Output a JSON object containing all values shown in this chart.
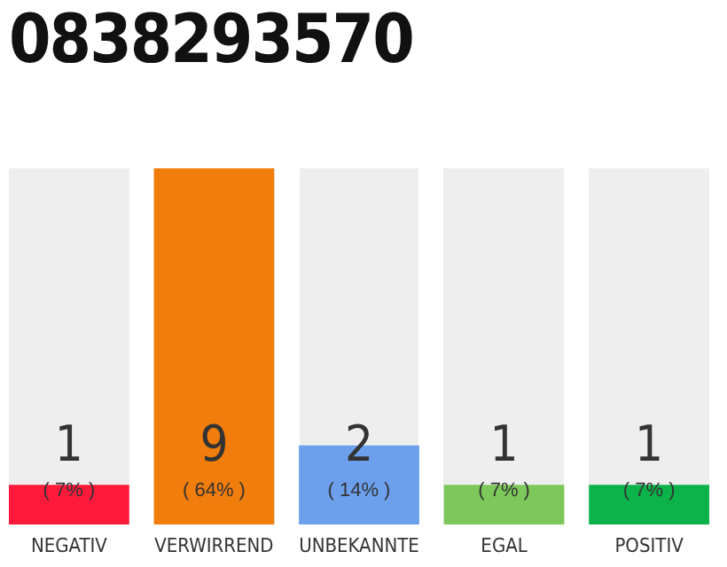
{
  "chart_data": {
    "type": "bar",
    "title": "0838293570",
    "categories": [
      "NEGATIV",
      "VERWIRREND",
      "UNBEKANNTE",
      "EGAL",
      "POSITIV"
    ],
    "values": [
      1,
      9,
      2,
      1,
      1
    ],
    "colors": [
      "#ff1a3c",
      "#f07d0c",
      "#6ca0ec",
      "#7dc85a",
      "#0bb34a"
    ],
    "ylim": [
      0,
      9
    ],
    "data_labels": true,
    "annotations": [
      "( 7% )",
      "( 64% )",
      "( 14% )",
      "( 7% )",
      "( 7% )"
    ]
  }
}
